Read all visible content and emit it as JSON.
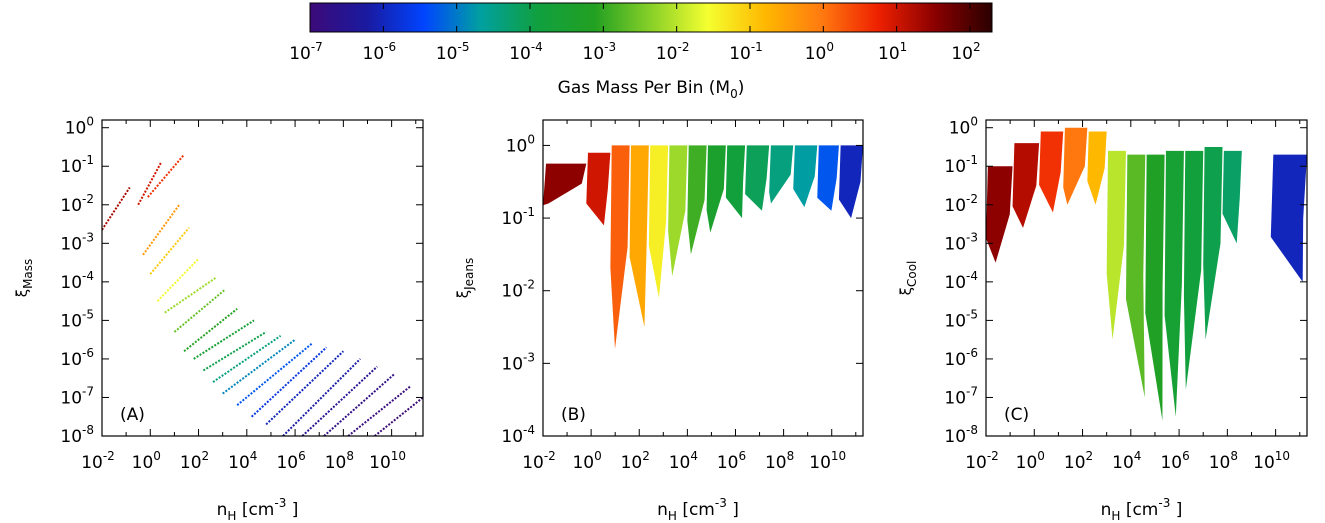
{
  "colorbar": {
    "label": "Gas Mass Per Bin (M",
    "label_sub": "0",
    "label_end": ")",
    "ticks": [
      {
        "base": "10",
        "exp": "-7"
      },
      {
        "base": "10",
        "exp": "-6"
      },
      {
        "base": "10",
        "exp": "-5"
      },
      {
        "base": "10",
        "exp": "-4"
      },
      {
        "base": "10",
        "exp": "-3"
      },
      {
        "base": "10",
        "exp": "-2"
      },
      {
        "base": "10",
        "exp": "-1"
      },
      {
        "base": "10",
        "exp": "0"
      },
      {
        "base": "10",
        "exp": "1"
      },
      {
        "base": "10",
        "exp": "2"
      }
    ],
    "log_range": [
      -7,
      2.3
    ],
    "stops": [
      "#3c0a78",
      "#1a1aa0",
      "#0044ff",
      "#00a0a0",
      "#10a040",
      "#22a022",
      "#88d028",
      "#f4ff30",
      "#ffb800",
      "#ff7a10",
      "#ee2000",
      "#8a0000",
      "#2a0000"
    ]
  },
  "chart_data": [
    {
      "type": "scatter",
      "panel_label": "(A)",
      "xlabel_main": "n",
      "xlabel_sub": "H",
      "xlabel_unit": " [cm",
      "xlabel_unit_exp": "-3",
      "xlabel_unit_end": " ]",
      "ylabel_main": "ξ",
      "ylabel_sub": "Mass",
      "x_scale": "log",
      "y_scale": "log",
      "xlim_log": [
        -2,
        11.3
      ],
      "ylim_log": [
        -8,
        0.2
      ],
      "x_ticks_exp": [
        "-2",
        "0",
        "2",
        "4",
        "6",
        "8",
        "10"
      ],
      "y_ticks_exp": [
        "-8",
        "-7",
        "-6",
        "-5",
        "-4",
        "-3",
        "-2",
        "-1",
        "0"
      ],
      "series": [
        {
          "x_log": [
            -2.0,
            -0.85
          ],
          "y_log": [
            -2.65,
            -1.55
          ],
          "mass_log": 1.3
        },
        {
          "x_log": [
            -0.5,
            0.45
          ],
          "y_log": [
            -2.0,
            -0.9
          ],
          "mass_log": 1.0
        },
        {
          "x_log": [
            -0.1,
            1.4
          ],
          "y_log": [
            -1.8,
            -0.7
          ],
          "mass_log": 0.6
        },
        {
          "x_log": [
            -0.3,
            1.2
          ],
          "y_log": [
            -3.3,
            -2.0
          ],
          "mass_log": -0.4
        },
        {
          "x_log": [
            0.0,
            1.6
          ],
          "y_log": [
            -3.8,
            -2.6
          ],
          "mass_log": -1.0
        },
        {
          "x_log": [
            0.3,
            2.0
          ],
          "y_log": [
            -4.5,
            -3.4
          ],
          "mass_log": -1.6
        },
        {
          "x_log": [
            0.6,
            2.7
          ],
          "y_log": [
            -4.8,
            -3.9
          ],
          "mass_log": -2.2
        },
        {
          "x_log": [
            1.0,
            3.1
          ],
          "y_log": [
            -5.3,
            -4.2
          ],
          "mass_log": -2.6
        },
        {
          "x_log": [
            1.4,
            3.6
          ],
          "y_log": [
            -5.8,
            -4.7
          ],
          "mass_log": -3.1
        },
        {
          "x_log": [
            1.8,
            4.3
          ],
          "y_log": [
            -6.0,
            -5.0
          ],
          "mass_log": -3.6
        },
        {
          "x_log": [
            2.2,
            4.8
          ],
          "y_log": [
            -6.3,
            -5.3
          ],
          "mass_log": -4.0
        },
        {
          "x_log": [
            2.6,
            5.4
          ],
          "y_log": [
            -6.6,
            -5.4
          ],
          "mass_log": -4.4
        },
        {
          "x_log": [
            3.0,
            6.0
          ],
          "y_log": [
            -6.9,
            -5.5
          ],
          "mass_log": -4.9
        },
        {
          "x_log": [
            3.6,
            6.7
          ],
          "y_log": [
            -7.2,
            -5.6
          ],
          "mass_log": -5.3
        },
        {
          "x_log": [
            4.2,
            7.3
          ],
          "y_log": [
            -7.5,
            -5.7
          ],
          "mass_log": -5.7
        },
        {
          "x_log": [
            4.8,
            8.0
          ],
          "y_log": [
            -7.7,
            -5.8
          ],
          "mass_log": -6.0
        },
        {
          "x_log": [
            5.5,
            8.7
          ],
          "y_log": [
            -8.0,
            -6.0
          ],
          "mass_log": -6.2
        },
        {
          "x_log": [
            6.3,
            9.4
          ],
          "y_log": [
            -8.0,
            -6.2
          ],
          "mass_log": -6.5
        },
        {
          "x_log": [
            7.2,
            10.1
          ],
          "y_log": [
            -8.0,
            -6.4
          ],
          "mass_log": -6.7
        },
        {
          "x_log": [
            8.2,
            10.8
          ],
          "y_log": [
            -8.0,
            -6.7
          ],
          "mass_log": -6.9
        },
        {
          "x_log": [
            9.3,
            11.3
          ],
          "y_log": [
            -8.0,
            -7.0
          ],
          "mass_log": -7.0
        }
      ]
    },
    {
      "type": "scatter",
      "panel_label": "(B)",
      "xlabel_main": "n",
      "xlabel_sub": "H",
      "xlabel_unit": " [cm",
      "xlabel_unit_exp": "-3",
      "xlabel_unit_end": " ]",
      "ylabel_main": "ξ",
      "ylabel_sub": "Jeans",
      "x_scale": "log",
      "y_scale": "log",
      "xlim_log": [
        -2,
        11.3
      ],
      "ylim_log": [
        -4,
        0.35
      ],
      "x_ticks_exp": [
        "-2",
        "0",
        "2",
        "4",
        "6",
        "8",
        "10"
      ],
      "y_ticks_exp": [
        "-4",
        "-3",
        "-2",
        "-1",
        "0"
      ],
      "bands": [
        {
          "x0": -2.0,
          "x1": -0.2,
          "y_top": -0.25,
          "y_bot": -0.8,
          "mass_log": 1.5
        },
        {
          "x0": -0.2,
          "x1": 0.8,
          "y_top": -0.1,
          "y_bot": -1.1,
          "mass_log": 1.0
        },
        {
          "x0": 0.8,
          "x1": 1.6,
          "y_top": 0.0,
          "y_bot": -2.8,
          "mass_log": 0.2
        },
        {
          "x0": 1.6,
          "x1": 2.4,
          "y_top": 0.0,
          "y_bot": -2.5,
          "mass_log": -0.6
        },
        {
          "x0": 2.4,
          "x1": 3.2,
          "y_top": 0.0,
          "y_bot": -2.1,
          "mass_log": -1.4
        },
        {
          "x0": 3.2,
          "x1": 4.0,
          "y_top": 0.0,
          "y_bot": -1.8,
          "mass_log": -2.2
        },
        {
          "x0": 4.0,
          "x1": 4.8,
          "y_top": 0.0,
          "y_bot": -1.5,
          "mass_log": -2.9
        },
        {
          "x0": 4.8,
          "x1": 5.6,
          "y_top": 0.0,
          "y_bot": -1.2,
          "mass_log": -3.4
        },
        {
          "x0": 5.6,
          "x1": 6.4,
          "y_top": 0.0,
          "y_bot": -1.0,
          "mass_log": -3.8
        },
        {
          "x0": 6.4,
          "x1": 7.4,
          "y_top": 0.0,
          "y_bot": -0.9,
          "mass_log": -4.1
        },
        {
          "x0": 7.4,
          "x1": 8.4,
          "y_top": 0.0,
          "y_bot": -0.8,
          "mass_log": -4.4
        },
        {
          "x0": 8.4,
          "x1": 9.4,
          "y_top": 0.0,
          "y_bot": -0.85,
          "mass_log": -4.7
        },
        {
          "x0": 9.4,
          "x1": 10.3,
          "y_top": 0.0,
          "y_bot": -0.9,
          "mass_log": -5.3
        },
        {
          "x0": 10.3,
          "x1": 11.3,
          "y_top": 0.0,
          "y_bot": -1.0,
          "mass_log": -6.0
        }
      ]
    },
    {
      "type": "scatter",
      "panel_label": "(C)",
      "xlabel_main": "n",
      "xlabel_sub": "H",
      "xlabel_unit": " [cm",
      "xlabel_unit_exp": "-3",
      "xlabel_unit_end": " ]",
      "ylabel_main": "ξ",
      "ylabel_sub": "Cool",
      "x_scale": "log",
      "y_scale": "log",
      "xlim_log": [
        -2,
        11.3
      ],
      "ylim_log": [
        -8,
        0.2
      ],
      "x_ticks_exp": [
        "-2",
        "0",
        "2",
        "4",
        "6",
        "8",
        "10"
      ],
      "y_ticks_exp": [
        "-8",
        "-7",
        "-6",
        "-5",
        "-4",
        "-3",
        "-2",
        "-1",
        "0"
      ],
      "bands": [
        {
          "x0": -2.0,
          "x1": -0.9,
          "y_top": -1.0,
          "y_bot": -3.5,
          "mass_log": 1.5
        },
        {
          "x0": -0.9,
          "x1": 0.2,
          "y_top": -0.4,
          "y_bot": -2.6,
          "mass_log": 1.2
        },
        {
          "x0": 0.2,
          "x1": 1.2,
          "y_top": -0.1,
          "y_bot": -2.2,
          "mass_log": 0.6
        },
        {
          "x0": 1.2,
          "x1": 2.2,
          "y_top": 0.0,
          "y_bot": -2.0,
          "mass_log": 0.0
        },
        {
          "x0": 2.2,
          "x1": 3.0,
          "y_top": -0.1,
          "y_bot": -2.0,
          "mass_log": -0.8
        },
        {
          "x0": 3.0,
          "x1": 3.8,
          "y_top": -0.6,
          "y_bot": -5.5,
          "mass_log": -2.0
        },
        {
          "x0": 3.8,
          "x1": 4.6,
          "y_top": -0.7,
          "y_bot": -7.0,
          "mass_log": -2.7
        },
        {
          "x0": 4.6,
          "x1": 5.4,
          "y_top": -0.7,
          "y_bot": -7.6,
          "mass_log": -3.2
        },
        {
          "x0": 5.4,
          "x1": 6.2,
          "y_top": -0.6,
          "y_bot": -7.5,
          "mass_log": -3.6
        },
        {
          "x0": 6.2,
          "x1": 7.0,
          "y_top": -0.6,
          "y_bot": -6.8,
          "mass_log": -3.8
        },
        {
          "x0": 7.0,
          "x1": 7.8,
          "y_top": -0.5,
          "y_bot": -5.5,
          "mass_log": -4.0
        },
        {
          "x0": 7.8,
          "x1": 8.6,
          "y_top": -0.6,
          "y_bot": -3.0,
          "mass_log": -4.2
        },
        {
          "x0": 9.8,
          "x1": 11.3,
          "y_top": -0.7,
          "y_bot": -4.0,
          "mass_log": -6.0
        }
      ]
    }
  ]
}
